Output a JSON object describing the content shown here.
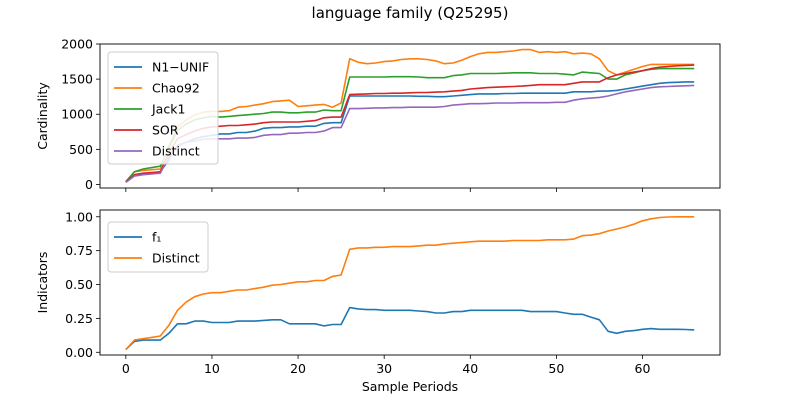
{
  "figure": {
    "title": "language family (Q25295)"
  },
  "chart_data": [
    {
      "type": "line",
      "title": "language family (Q25295)",
      "xlabel": "",
      "ylabel": "Cardinality",
      "xlim": [
        -3,
        69
      ],
      "ylim": [
        -50,
        2000
      ],
      "xticks": [
        0,
        10,
        20,
        30,
        40,
        50,
        60
      ],
      "xtick_labels_visible": false,
      "yticks": [
        0,
        500,
        1000,
        1500,
        2000
      ],
      "ytick_labels": [
        "0",
        "500",
        "1000",
        "1500",
        "2000"
      ],
      "legend": "upper-left",
      "grid": false,
      "x": [
        0,
        1,
        2,
        3,
        4,
        5,
        6,
        7,
        8,
        9,
        10,
        11,
        12,
        13,
        14,
        15,
        16,
        17,
        18,
        19,
        20,
        21,
        22,
        23,
        24,
        25,
        26,
        27,
        28,
        29,
        30,
        31,
        32,
        33,
        34,
        35,
        36,
        37,
        38,
        39,
        40,
        41,
        42,
        43,
        44,
        45,
        46,
        47,
        48,
        49,
        50,
        51,
        52,
        53,
        54,
        55,
        56,
        57,
        58,
        59,
        60,
        61,
        62,
        63,
        64,
        65,
        66
      ],
      "series": [
        {
          "name": "N1−UNIF",
          "color": "#1f77b4",
          "values": [
            40,
            130,
            150,
            160,
            180,
            350,
            560,
            600,
            650,
            680,
            700,
            720,
            720,
            740,
            740,
            760,
            800,
            810,
            810,
            820,
            820,
            830,
            830,
            870,
            880,
            880,
            1260,
            1260,
            1260,
            1260,
            1260,
            1260,
            1260,
            1260,
            1255,
            1255,
            1250,
            1250,
            1260,
            1270,
            1280,
            1290,
            1290,
            1290,
            1295,
            1295,
            1300,
            1300,
            1300,
            1300,
            1300,
            1300,
            1320,
            1320,
            1320,
            1330,
            1330,
            1340,
            1360,
            1380,
            1400,
            1420,
            1440,
            1450,
            1455,
            1460,
            1460
          ]
        },
        {
          "name": "Chao92",
          "color": "#ff7f0e",
          "values": [
            40,
            180,
            200,
            210,
            220,
            550,
            820,
            920,
            990,
            1030,
            1040,
            1040,
            1050,
            1100,
            1110,
            1130,
            1150,
            1180,
            1190,
            1200,
            1110,
            1120,
            1130,
            1140,
            1100,
            1160,
            1790,
            1740,
            1720,
            1730,
            1750,
            1760,
            1780,
            1790,
            1790,
            1780,
            1760,
            1720,
            1730,
            1770,
            1820,
            1860,
            1880,
            1880,
            1890,
            1900,
            1920,
            1920,
            1880,
            1890,
            1880,
            1890,
            1860,
            1870,
            1860,
            1790,
            1620,
            1560,
            1600,
            1640,
            1680,
            1710,
            1710,
            1710,
            1710,
            1710,
            1710
          ]
        },
        {
          "name": "Jack1",
          "color": "#2ca02c",
          "values": [
            40,
            180,
            220,
            240,
            260,
            520,
            770,
            860,
            920,
            950,
            970,
            960,
            970,
            980,
            990,
            1000,
            1010,
            1030,
            1030,
            1020,
            1020,
            1030,
            1030,
            1060,
            1050,
            1050,
            1530,
            1530,
            1530,
            1530,
            1530,
            1535,
            1535,
            1535,
            1530,
            1520,
            1520,
            1520,
            1550,
            1560,
            1580,
            1580,
            1580,
            1580,
            1585,
            1590,
            1590,
            1590,
            1580,
            1580,
            1580,
            1570,
            1560,
            1600,
            1590,
            1580,
            1500,
            1500,
            1560,
            1590,
            1620,
            1640,
            1650,
            1650,
            1650,
            1650,
            1650
          ]
        },
        {
          "name": "SOR",
          "color": "#d62728",
          "values": [
            40,
            140,
            160,
            170,
            180,
            450,
            650,
            710,
            760,
            800,
            820,
            830,
            840,
            840,
            850,
            860,
            880,
            890,
            890,
            890,
            890,
            900,
            910,
            950,
            960,
            960,
            1280,
            1285,
            1290,
            1295,
            1295,
            1300,
            1300,
            1305,
            1310,
            1310,
            1315,
            1320,
            1330,
            1340,
            1360,
            1370,
            1380,
            1385,
            1390,
            1395,
            1400,
            1410,
            1420,
            1420,
            1420,
            1420,
            1440,
            1460,
            1460,
            1460,
            1520,
            1560,
            1580,
            1600,
            1620,
            1650,
            1670,
            1680,
            1690,
            1695,
            1700
          ]
        },
        {
          "name": "Distinct",
          "color": "#9467bd",
          "values": [
            30,
            120,
            140,
            150,
            160,
            400,
            540,
            600,
            620,
            640,
            650,
            650,
            650,
            660,
            660,
            670,
            700,
            710,
            710,
            730,
            730,
            740,
            740,
            760,
            810,
            810,
            1080,
            1080,
            1085,
            1090,
            1090,
            1095,
            1095,
            1100,
            1100,
            1100,
            1100,
            1110,
            1130,
            1140,
            1150,
            1150,
            1155,
            1160,
            1160,
            1160,
            1165,
            1165,
            1165,
            1165,
            1170,
            1170,
            1200,
            1220,
            1230,
            1240,
            1260,
            1290,
            1320,
            1340,
            1360,
            1380,
            1390,
            1395,
            1400,
            1405,
            1410
          ]
        }
      ]
    },
    {
      "type": "line",
      "title": "",
      "xlabel": "Sample Periods",
      "ylabel": "Indicators",
      "xlim": [
        -3,
        69
      ],
      "ylim": [
        -0.02,
        1.05
      ],
      "xticks": [
        0,
        10,
        20,
        30,
        40,
        50,
        60
      ],
      "xtick_labels": [
        "0",
        "10",
        "20",
        "30",
        "40",
        "50",
        "60"
      ],
      "yticks": [
        0,
        0.25,
        0.5,
        0.75,
        1
      ],
      "ytick_labels": [
        "0.00",
        "0.25",
        "0.50",
        "0.75",
        "1.00"
      ],
      "legend": "upper-left",
      "grid": false,
      "x": [
        0,
        1,
        2,
        3,
        4,
        5,
        6,
        7,
        8,
        9,
        10,
        11,
        12,
        13,
        14,
        15,
        16,
        17,
        18,
        19,
        20,
        21,
        22,
        23,
        24,
        25,
        26,
        27,
        28,
        29,
        30,
        31,
        32,
        33,
        34,
        35,
        36,
        37,
        38,
        39,
        40,
        41,
        42,
        43,
        44,
        45,
        46,
        47,
        48,
        49,
        50,
        51,
        52,
        53,
        54,
        55,
        56,
        57,
        58,
        59,
        60,
        61,
        62,
        63,
        64,
        65,
        66
      ],
      "series": [
        {
          "name": "f₁",
          "color": "#1f77b4",
          "values": [
            0.02,
            0.08,
            0.09,
            0.09,
            0.09,
            0.14,
            0.21,
            0.21,
            0.23,
            0.23,
            0.22,
            0.22,
            0.22,
            0.23,
            0.23,
            0.23,
            0.235,
            0.24,
            0.24,
            0.21,
            0.21,
            0.21,
            0.21,
            0.195,
            0.205,
            0.205,
            0.33,
            0.32,
            0.315,
            0.315,
            0.31,
            0.31,
            0.31,
            0.31,
            0.305,
            0.3,
            0.29,
            0.29,
            0.3,
            0.3,
            0.31,
            0.31,
            0.31,
            0.31,
            0.31,
            0.31,
            0.31,
            0.3,
            0.3,
            0.3,
            0.3,
            0.29,
            0.28,
            0.28,
            0.26,
            0.24,
            0.155,
            0.14,
            0.155,
            0.16,
            0.17,
            0.175,
            0.17,
            0.17,
            0.17,
            0.168,
            0.165
          ]
        },
        {
          "name": "Distinct",
          "color": "#ff7f0e",
          "values": [
            0.02,
            0.09,
            0.1,
            0.11,
            0.12,
            0.2,
            0.31,
            0.37,
            0.41,
            0.43,
            0.44,
            0.44,
            0.45,
            0.46,
            0.46,
            0.47,
            0.48,
            0.495,
            0.5,
            0.51,
            0.52,
            0.52,
            0.53,
            0.53,
            0.56,
            0.57,
            0.76,
            0.77,
            0.77,
            0.775,
            0.775,
            0.78,
            0.78,
            0.78,
            0.785,
            0.79,
            0.79,
            0.8,
            0.805,
            0.81,
            0.815,
            0.82,
            0.82,
            0.82,
            0.82,
            0.825,
            0.825,
            0.825,
            0.825,
            0.83,
            0.83,
            0.83,
            0.835,
            0.86,
            0.865,
            0.875,
            0.895,
            0.91,
            0.925,
            0.945,
            0.97,
            0.985,
            0.995,
            0.998,
            1.0,
            1.0,
            1.0
          ]
        }
      ]
    }
  ]
}
